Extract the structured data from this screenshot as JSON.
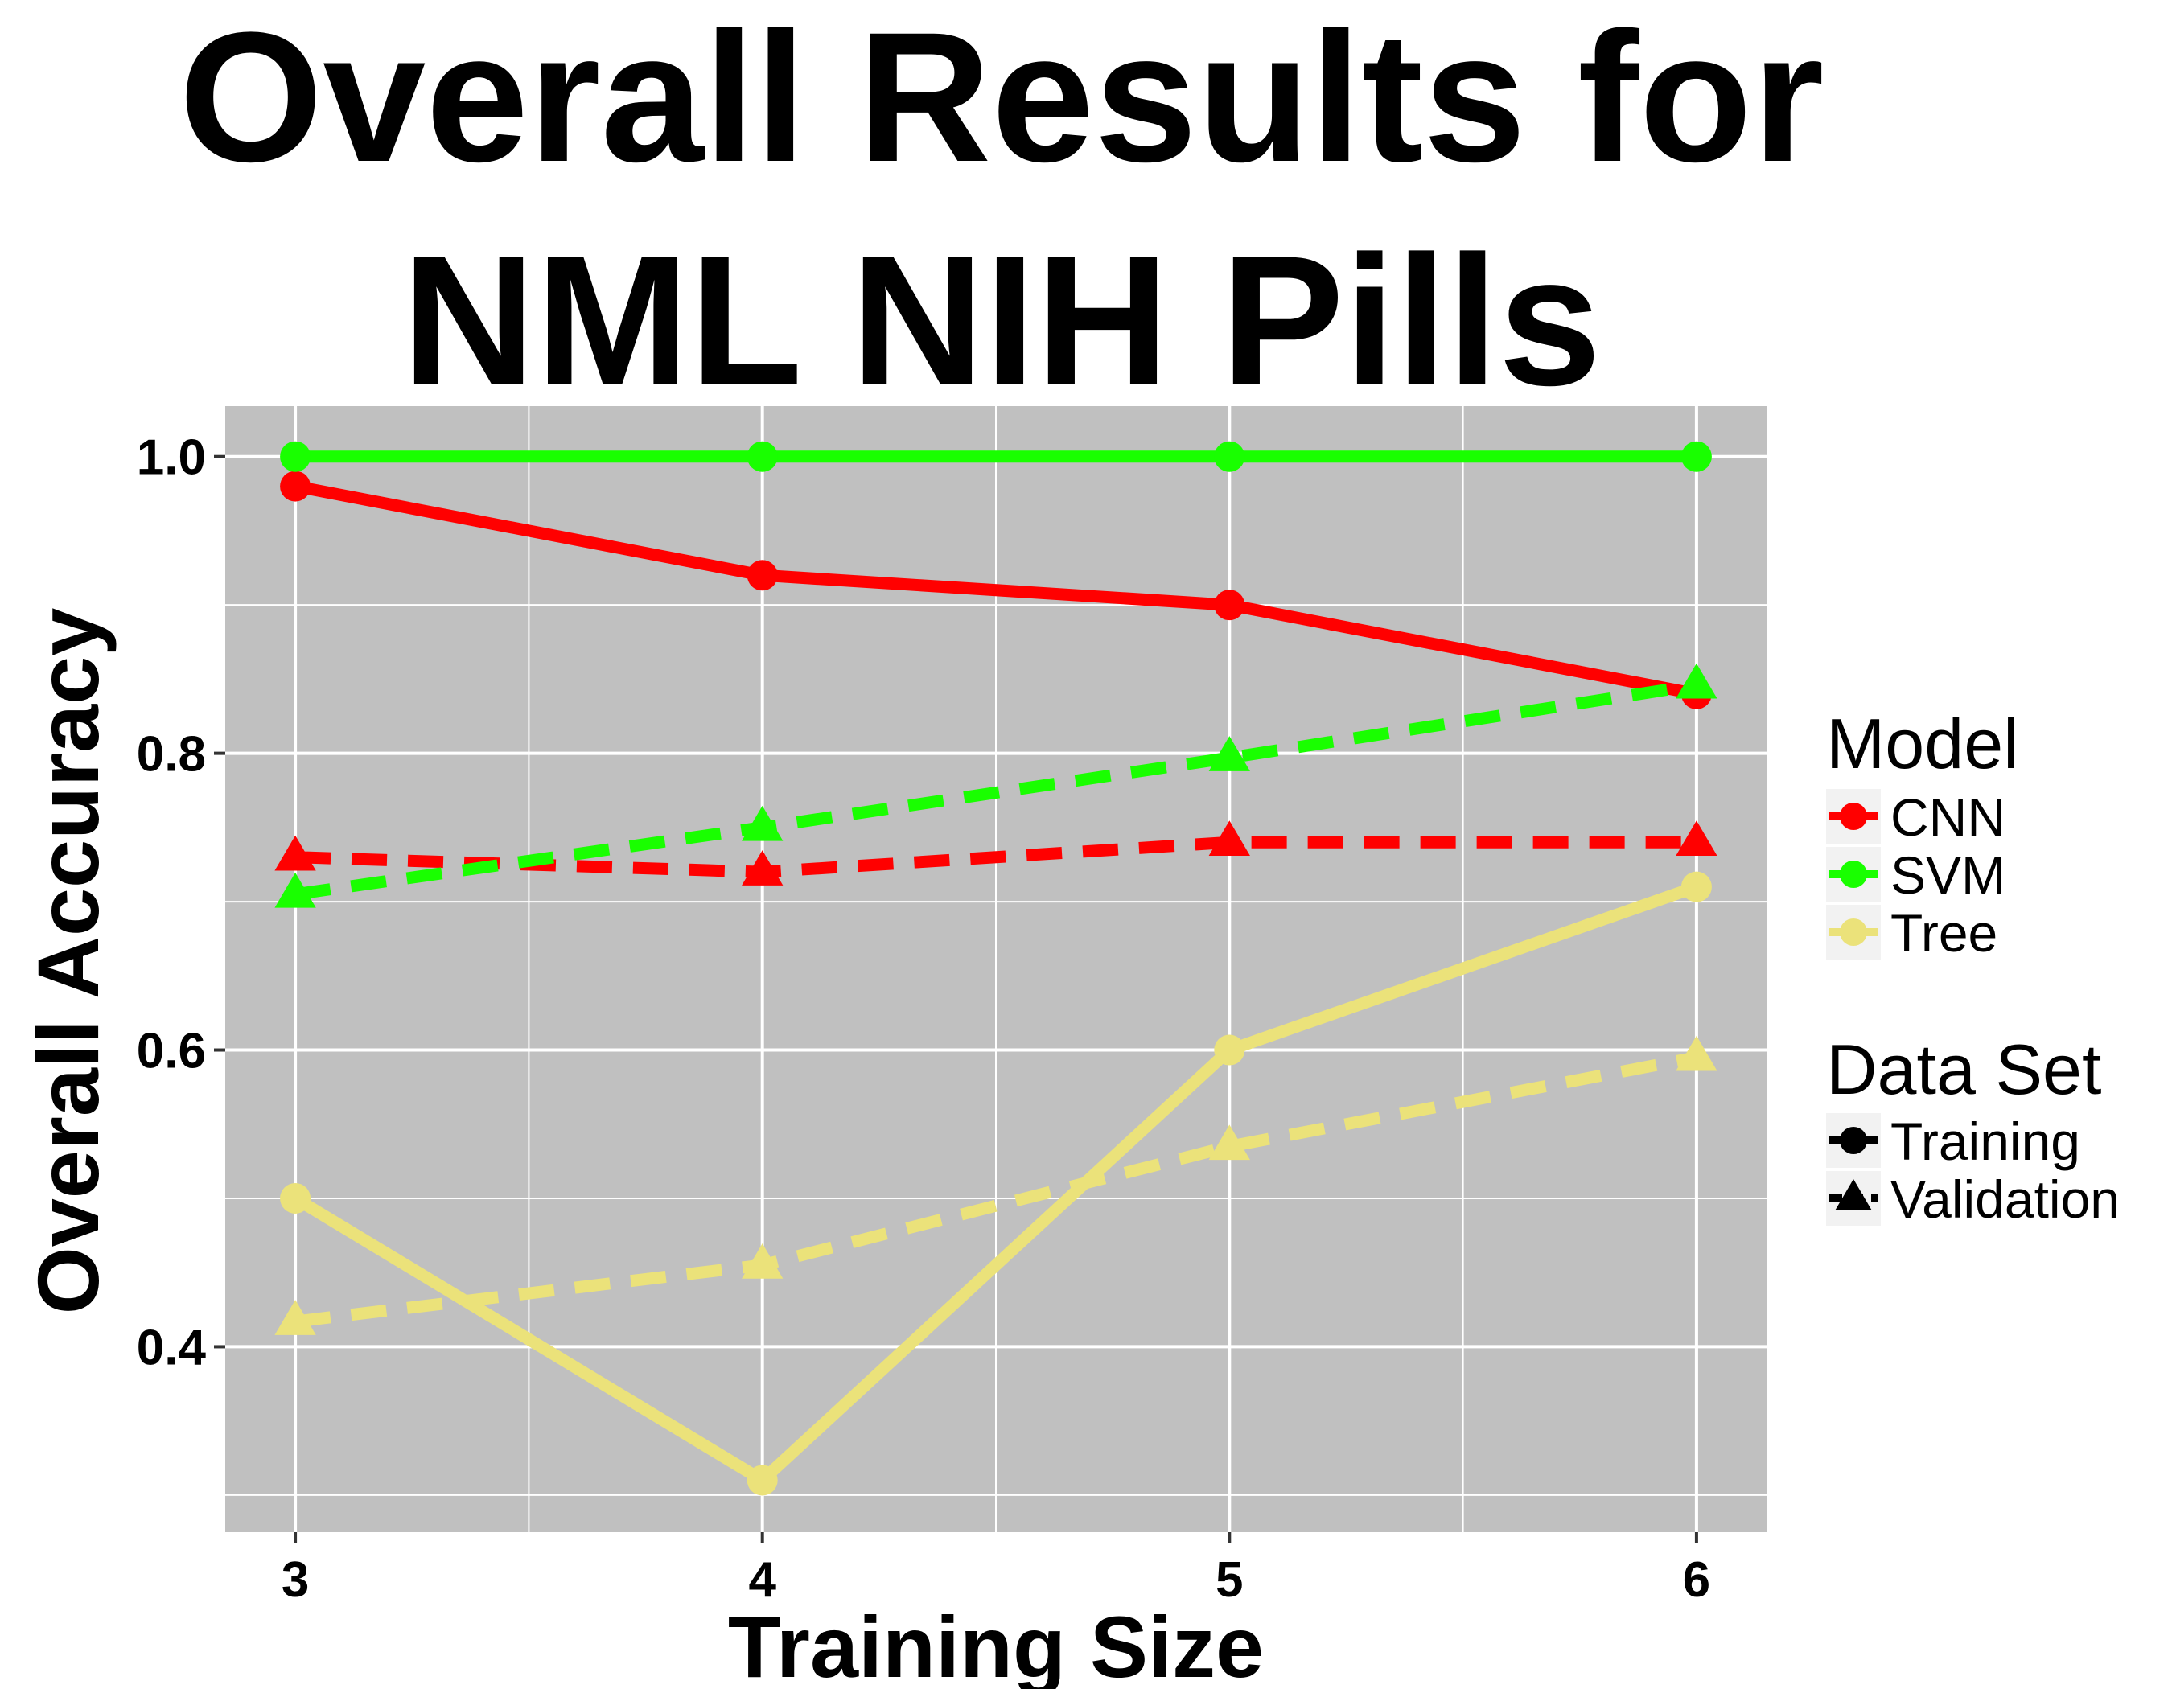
{
  "chart_data": {
    "type": "line",
    "title_lines": [
      "Overall Results for",
      "NML NIH Pills"
    ],
    "xlabel": "Training Size",
    "ylabel": "Overall Accuracy",
    "x": [
      3,
      4,
      5,
      6
    ],
    "x_ticks": [
      "3",
      "4",
      "5",
      "6"
    ],
    "xlim": [
      2.85,
      6.15
    ],
    "ylim": [
      0.275,
      1.034
    ],
    "y_ticks": [
      "0.4",
      "0.6",
      "0.8",
      "1.0"
    ],
    "y_tick_values": [
      0.4,
      0.6,
      0.8,
      1.0
    ],
    "y_minor_values": [
      0.3,
      0.5,
      0.7,
      0.9
    ],
    "x_minor_values": [
      3.5,
      4.5,
      5.5
    ],
    "grid": true,
    "panel_background": "#c0c0c0",
    "grid_color": "#ffffff",
    "legend_placement": "right",
    "legend": {
      "model_title": "Model",
      "models": [
        {
          "name": "CNN",
          "color": "#ff0000"
        },
        {
          "name": "SVM",
          "color": "#19ff00"
        },
        {
          "name": "Tree",
          "color": "#ebe27a"
        }
      ],
      "dataset_title": "Data Set",
      "datasets": [
        {
          "name": "Training",
          "shape": "circle",
          "linestyle": "solid"
        },
        {
          "name": "Validation",
          "shape": "triangle",
          "linestyle": "dashed"
        }
      ]
    },
    "series": [
      {
        "model": "CNN",
        "dataset": "Training",
        "values": [
          0.98,
          0.92,
          0.9,
          0.84
        ]
      },
      {
        "model": "CNN",
        "dataset": "Validation",
        "values": [
          0.73,
          0.72,
          0.74,
          0.74
        ]
      },
      {
        "model": "SVM",
        "dataset": "Training",
        "values": [
          1.0,
          1.0,
          1.0,
          1.0
        ]
      },
      {
        "model": "SVM",
        "dataset": "Validation",
        "values": [
          0.705,
          0.75,
          0.797,
          0.846
        ]
      },
      {
        "model": "Tree",
        "dataset": "Training",
        "values": [
          0.5,
          0.31,
          0.6,
          0.71
        ]
      },
      {
        "model": "Tree",
        "dataset": "Validation",
        "values": [
          0.417,
          0.455,
          0.535,
          0.595
        ]
      }
    ]
  }
}
